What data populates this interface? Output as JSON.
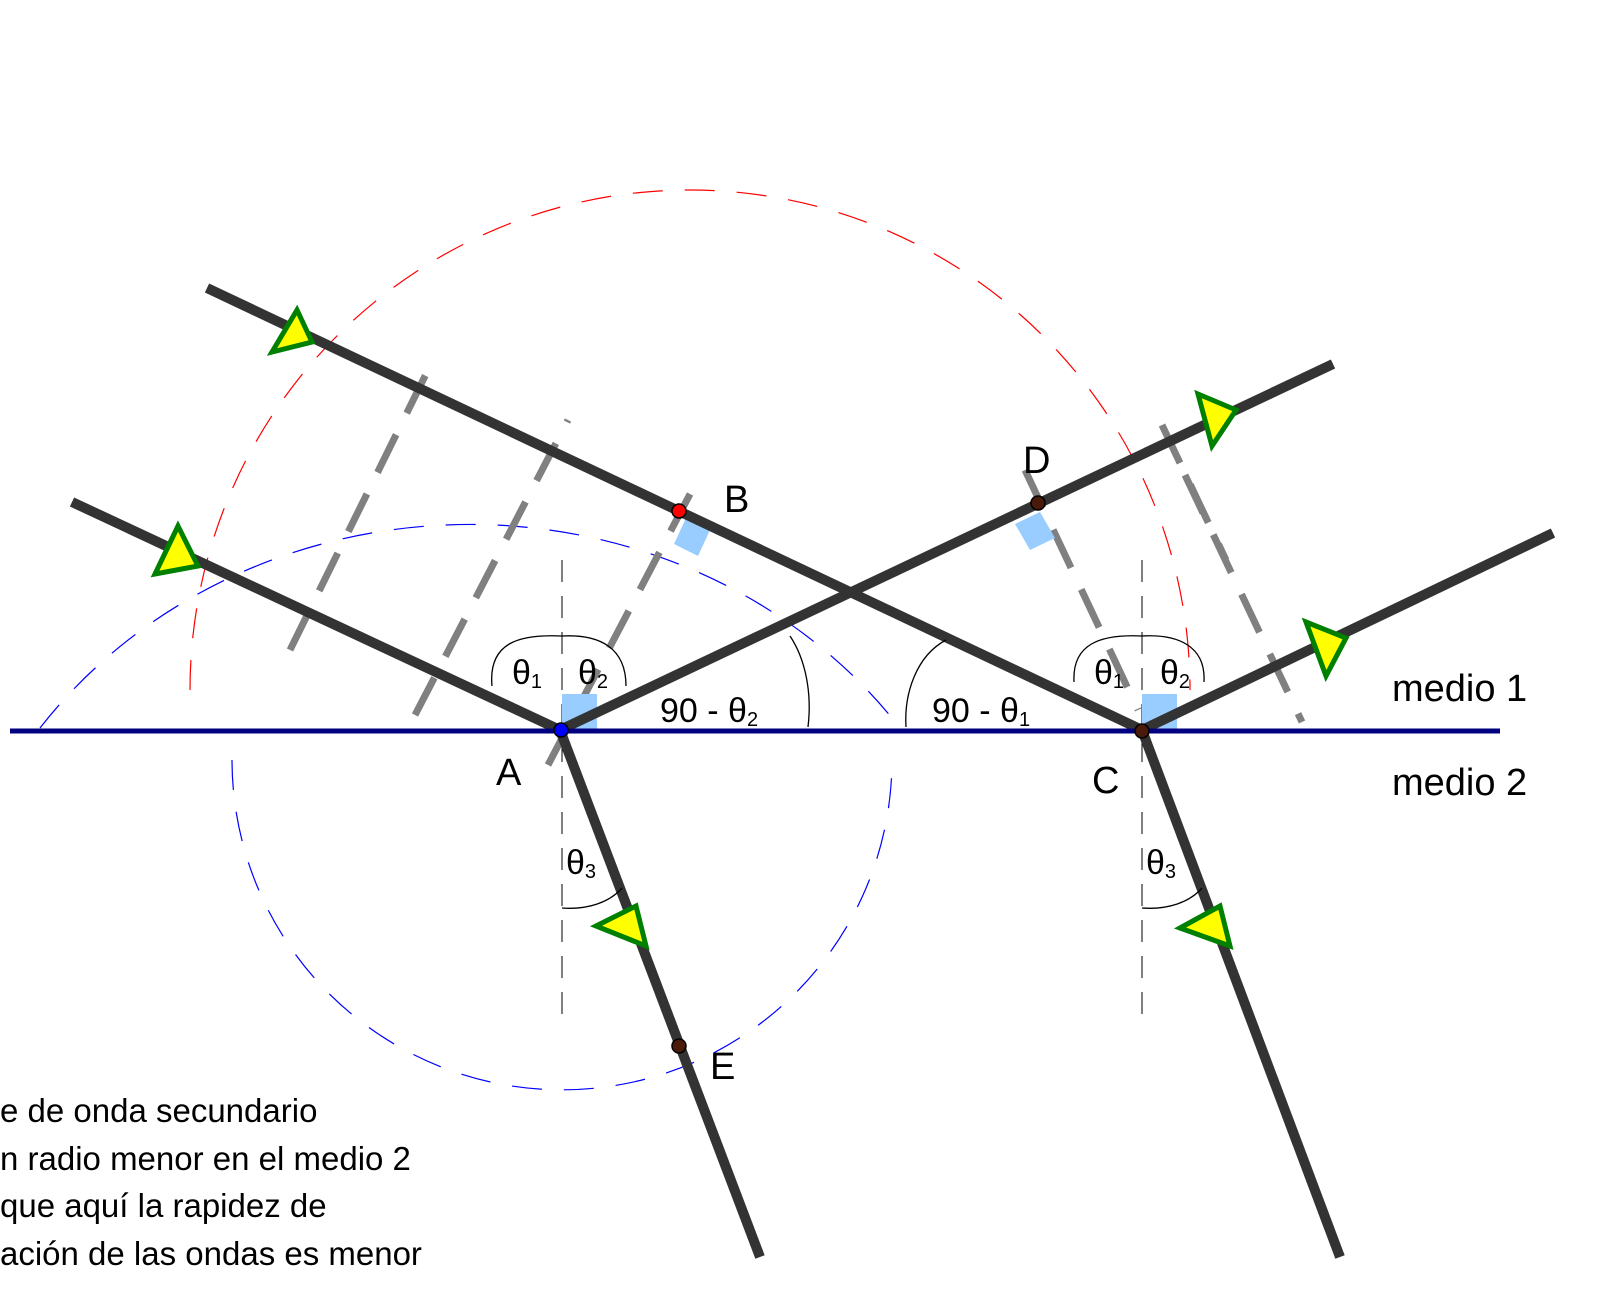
{
  "diagram": {
    "points": {
      "A": "A",
      "B": "B",
      "C": "C",
      "D": "D",
      "E": "E"
    },
    "media": {
      "top": "medio 1",
      "bottom": "medio 2"
    },
    "angles": {
      "theta1_left": {
        "sym": "θ",
        "sub": "1"
      },
      "theta2_left": {
        "sym": "θ",
        "sub": "2"
      },
      "theta1_right": {
        "sym": "θ",
        "sub": "1"
      },
      "theta2_right": {
        "sym": "θ",
        "sub": "2"
      },
      "theta3_left": {
        "sym": "θ",
        "sub": "3"
      },
      "theta3_right": {
        "sym": "θ",
        "sub": "3"
      },
      "comp2": {
        "text": "90 - θ",
        "sub": "2"
      },
      "comp1": {
        "text": "90 - θ",
        "sub": "1"
      }
    },
    "note_lines": [
      "e de onda secundario",
      "n radio menor en el medio 2",
      "que aquí la rapidez de",
      "ación de las ondas es menor"
    ],
    "colors": {
      "ray": "#333333",
      "interface": "#000080",
      "arrow_fill": "#ffff00",
      "arrow_stroke": "#008000",
      "wavefront": "#808080",
      "circle_incident": "#ff0000",
      "circle_refracted": "#0000ff",
      "right_angle_marker": "#99ccff"
    }
  }
}
